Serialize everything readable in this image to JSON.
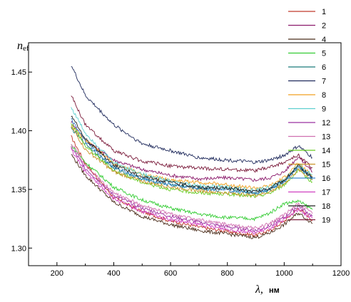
{
  "chart_data": {
    "type": "line",
    "title": "",
    "ylabel_main": "n",
    "ylabel_sub": "ef",
    "xlabel_symbol": "λ,",
    "xlabel_unit": "нм",
    "xlim": [
      100,
      1200
    ],
    "ylim": [
      1.285,
      1.475
    ],
    "xticks": [
      200,
      400,
      600,
      800,
      1000,
      1200
    ],
    "yticks": [
      1.3,
      1.35,
      1.4,
      1.45
    ],
    "ytick_labels": [
      "1.30",
      "1.35",
      "1.40",
      "1.45"
    ],
    "grid": false,
    "legend_position": "right",
    "x": [
      250,
      300,
      400,
      500,
      600,
      700,
      800,
      900,
      950,
      1000,
      1050,
      1100
    ],
    "series": [
      {
        "name": "1",
        "color": "#c0392b",
        "values": [
          1.395,
          1.372,
          1.343,
          1.331,
          1.323,
          1.318,
          1.314,
          1.311,
          1.315,
          1.323,
          1.334,
          1.324
        ]
      },
      {
        "name": "2",
        "color": "#8b1a6b",
        "values": [
          1.408,
          1.392,
          1.375,
          1.367,
          1.362,
          1.359,
          1.36,
          1.358,
          1.36,
          1.365,
          1.378,
          1.365
        ]
      },
      {
        "name": "4",
        "color": "#4a2c1a",
        "values": [
          1.38,
          1.362,
          1.339,
          1.327,
          1.32,
          1.315,
          1.312,
          1.309,
          1.313,
          1.32,
          1.33,
          1.321
        ]
      },
      {
        "name": "5",
        "color": "#33cc33",
        "values": [
          1.388,
          1.373,
          1.352,
          1.341,
          1.334,
          1.329,
          1.326,
          1.325,
          1.33,
          1.338,
          1.34,
          1.333
        ]
      },
      {
        "name": "6",
        "color": "#1a7a7a",
        "values": [
          1.402,
          1.389,
          1.368,
          1.359,
          1.354,
          1.351,
          1.35,
          1.347,
          1.35,
          1.357,
          1.37,
          1.358
        ]
      },
      {
        "name": "7",
        "color": "#1f2a5c",
        "values": [
          1.456,
          1.43,
          1.405,
          1.389,
          1.383,
          1.377,
          1.375,
          1.373,
          1.375,
          1.379,
          1.387,
          1.377
        ]
      },
      {
        "name": "8",
        "color": "#f0a020",
        "values": [
          1.404,
          1.392,
          1.372,
          1.363,
          1.358,
          1.356,
          1.354,
          1.351,
          1.353,
          1.36,
          1.372,
          1.361
        ]
      },
      {
        "name": "9",
        "color": "#5fd0d0",
        "values": [
          1.42,
          1.398,
          1.373,
          1.363,
          1.357,
          1.353,
          1.352,
          1.349,
          1.352,
          1.358,
          1.371,
          1.362
        ]
      },
      {
        "name": "12",
        "color": "#9b30a0",
        "values": [
          1.386,
          1.368,
          1.345,
          1.334,
          1.327,
          1.322,
          1.318,
          1.315,
          1.319,
          1.326,
          1.336,
          1.327
        ]
      },
      {
        "name": "13",
        "color": "#d070b0",
        "values": [
          1.39,
          1.37,
          1.347,
          1.336,
          1.329,
          1.324,
          1.32,
          1.317,
          1.321,
          1.328,
          1.338,
          1.329
        ]
      },
      {
        "name": "14",
        "color": "#66cc22",
        "values": [
          1.407,
          1.387,
          1.366,
          1.356,
          1.35,
          1.347,
          1.346,
          1.344,
          1.347,
          1.354,
          1.366,
          1.356
        ]
      },
      {
        "name": "15",
        "color": "#c9932a",
        "values": [
          1.404,
          1.384,
          1.365,
          1.357,
          1.352,
          1.349,
          1.347,
          1.345,
          1.348,
          1.355,
          1.367,
          1.358
        ]
      },
      {
        "name": "16",
        "color": "#3a8ad0",
        "values": [
          1.41,
          1.391,
          1.369,
          1.359,
          1.354,
          1.351,
          1.349,
          1.347,
          1.35,
          1.357,
          1.369,
          1.36
        ]
      },
      {
        "name": "17",
        "color": "#d040c0",
        "values": [
          1.384,
          1.365,
          1.342,
          1.331,
          1.324,
          1.32,
          1.316,
          1.313,
          1.317,
          1.324,
          1.333,
          1.325
        ]
      },
      {
        "name": "18",
        "color": "#222222",
        "values": [
          1.413,
          1.393,
          1.371,
          1.361,
          1.356,
          1.352,
          1.351,
          1.348,
          1.351,
          1.358,
          1.37,
          1.36
        ]
      },
      {
        "name": "19",
        "color": "#7a1a3a",
        "values": [
          1.43,
          1.405,
          1.383,
          1.374,
          1.37,
          1.368,
          1.367,
          1.366,
          1.369,
          1.373,
          1.379,
          1.368
        ]
      }
    ]
  }
}
